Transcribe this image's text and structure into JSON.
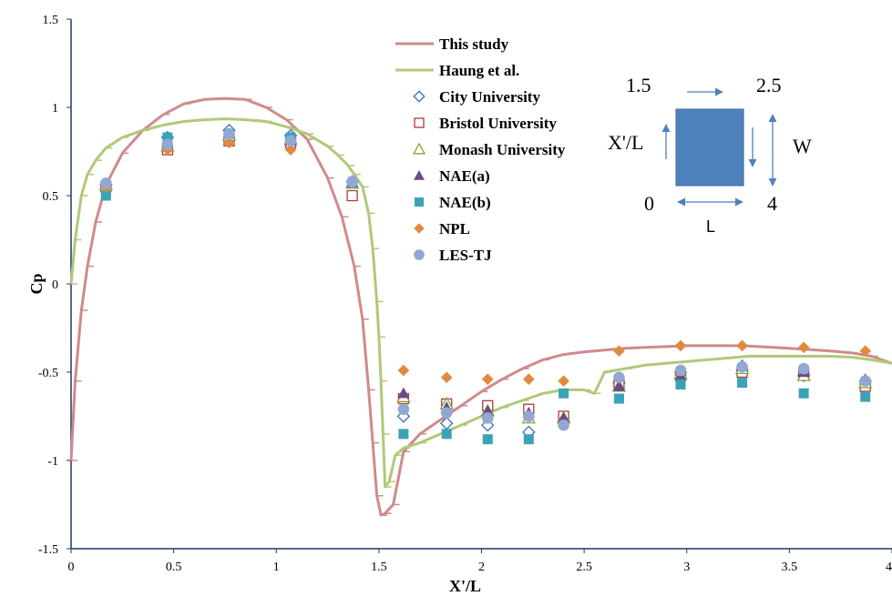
{
  "chart_data": {
    "type": "scatter",
    "xlabel": "X'/L",
    "ylabel": "Cp",
    "xlim": [
      0,
      4
    ],
    "ylim": [
      -1.5,
      1.5
    ],
    "x_ticks": [
      "0",
      "0.5",
      "1",
      "1.5",
      "2",
      "2.5",
      "3",
      "3.5",
      "4"
    ],
    "y_ticks": [
      "-1.5",
      "-1",
      "-0.5",
      "0",
      "0.5",
      "1",
      "1.5"
    ],
    "grid": false,
    "legend_position": "top-center",
    "lines": [
      {
        "name": "This study",
        "color": "#d08a8a",
        "x": [
          0,
          0.02,
          0.05,
          0.08,
          0.12,
          0.17,
          0.25,
          0.35,
          0.45,
          0.55,
          0.65,
          0.75,
          0.85,
          0.95,
          1.05,
          1.15,
          1.25,
          1.32,
          1.38,
          1.42,
          1.45,
          1.47,
          1.49,
          1.51,
          1.53,
          1.57,
          1.62,
          1.7,
          1.8,
          1.9,
          2.0,
          2.1,
          2.2,
          2.3,
          2.4,
          2.5,
          2.6,
          2.7,
          2.8,
          2.9,
          3.0,
          3.1,
          3.2,
          3.3,
          3.4,
          3.5,
          3.6,
          3.7,
          3.8,
          3.9,
          4.0
        ],
        "y": [
          -1.0,
          -0.55,
          -0.15,
          0.1,
          0.35,
          0.56,
          0.74,
          0.87,
          0.96,
          1.02,
          1.045,
          1.05,
          1.045,
          1.0,
          0.93,
          0.82,
          0.6,
          0.38,
          0.1,
          -0.2,
          -0.6,
          -0.9,
          -1.2,
          -1.31,
          -1.3,
          -1.25,
          -0.95,
          -0.85,
          -0.77,
          -0.69,
          -0.61,
          -0.54,
          -0.48,
          -0.43,
          -0.4,
          -0.385,
          -0.375,
          -0.365,
          -0.36,
          -0.355,
          -0.35,
          -0.35,
          -0.35,
          -0.352,
          -0.358,
          -0.365,
          -0.372,
          -0.38,
          -0.39,
          -0.41,
          -0.45
        ]
      },
      {
        "name": "Haung et al.",
        "color": "#afc97a",
        "x": [
          0,
          0.02,
          0.05,
          0.08,
          0.12,
          0.17,
          0.25,
          0.35,
          0.45,
          0.55,
          0.65,
          0.75,
          0.85,
          0.95,
          1.05,
          1.15,
          1.25,
          1.3,
          1.35,
          1.38,
          1.42,
          1.45,
          1.47,
          1.49,
          1.5,
          1.51,
          1.52,
          1.53,
          1.55,
          1.58,
          1.62,
          1.7,
          1.8,
          1.9,
          2.0,
          2.1,
          2.2,
          2.3,
          2.4,
          2.5,
          2.55,
          2.6,
          2.7,
          2.8,
          2.9,
          3.0,
          3.1,
          3.2,
          3.3,
          3.4,
          3.5,
          3.6,
          3.7,
          3.8,
          3.9,
          4.0
        ],
        "y": [
          0.0,
          0.25,
          0.5,
          0.62,
          0.7,
          0.77,
          0.83,
          0.87,
          0.9,
          0.92,
          0.93,
          0.935,
          0.93,
          0.92,
          0.89,
          0.85,
          0.78,
          0.73,
          0.67,
          0.62,
          0.55,
          0.4,
          0.2,
          -0.1,
          -0.3,
          -0.55,
          -0.85,
          -1.15,
          -1.12,
          -0.97,
          -0.93,
          -0.9,
          -0.85,
          -0.8,
          -0.75,
          -0.7,
          -0.66,
          -0.62,
          -0.6,
          -0.6,
          -0.62,
          -0.5,
          -0.48,
          -0.46,
          -0.45,
          -0.44,
          -0.43,
          -0.42,
          -0.41,
          -0.41,
          -0.41,
          -0.41,
          -0.41,
          -0.415,
          -0.43,
          -0.45
        ]
      }
    ],
    "series": [
      {
        "name": "City University",
        "marker": "diamond-open",
        "color": "#3a6fb5",
        "x": [
          0.17,
          0.47,
          0.77,
          1.07,
          1.37,
          1.62,
          1.83,
          2.03,
          2.23,
          2.4,
          2.67,
          2.97,
          3.27,
          3.57,
          3.87
        ],
        "y": [
          0.56,
          0.83,
          0.87,
          0.84,
          0.58,
          -0.75,
          -0.79,
          -0.8,
          -0.84,
          -0.78,
          -0.56,
          -0.5,
          -0.49,
          -0.52,
          -0.55
        ]
      },
      {
        "name": "Bristol University",
        "marker": "square-open",
        "color": "#b03a3a",
        "x": [
          0.17,
          0.47,
          0.77,
          1.07,
          1.37,
          1.62,
          1.83,
          2.03,
          2.23,
          2.4,
          2.67,
          2.97,
          3.27,
          3.57,
          3.87
        ],
        "y": [
          0.55,
          0.76,
          0.81,
          0.8,
          0.5,
          -0.65,
          -0.68,
          -0.69,
          -0.71,
          -0.75,
          -0.57,
          -0.52,
          -0.5,
          -0.51,
          -0.58
        ]
      },
      {
        "name": "Monash University",
        "marker": "triangle-open",
        "color": "#8aa336",
        "x": [
          0.17,
          0.47,
          0.77,
          1.07,
          1.37,
          1.62,
          1.83,
          2.03,
          2.23,
          2.4,
          2.67,
          2.97,
          3.27,
          3.57,
          3.87
        ],
        "y": [
          0.56,
          0.78,
          0.84,
          0.82,
          0.57,
          -0.64,
          -0.68,
          -0.72,
          -0.76,
          -0.76,
          -0.58,
          -0.51,
          -0.48,
          -0.52,
          -0.56
        ]
      },
      {
        "name": "NAE(a)",
        "marker": "triangle-filled",
        "color": "#6a4a8c",
        "x": [
          0.17,
          0.47,
          0.77,
          1.07,
          1.37,
          1.62,
          1.83,
          2.03,
          2.23,
          2.4,
          2.67,
          2.97,
          3.27,
          3.57,
          3.87
        ],
        "y": [
          0.57,
          0.8,
          0.85,
          0.81,
          0.58,
          -0.62,
          -0.7,
          -0.72,
          -0.73,
          -0.76,
          -0.58,
          -0.52,
          -0.46,
          -0.5,
          -0.54
        ]
      },
      {
        "name": "NAE(b)",
        "marker": "square-filled",
        "color": "#3aa3b5",
        "x": [
          0.17,
          0.47,
          0.77,
          1.07,
          1.37,
          1.62,
          1.83,
          2.03,
          2.23,
          2.4,
          2.67,
          2.97,
          3.27,
          3.57,
          3.87
        ],
        "y": [
          0.5,
          0.83,
          0.85,
          0.83,
          0.57,
          -0.85,
          -0.85,
          -0.88,
          -0.88,
          -0.62,
          -0.65,
          -0.57,
          -0.56,
          -0.62,
          -0.64
        ]
      },
      {
        "name": "NPL",
        "marker": "diamond-filled",
        "color": "#e08a3c",
        "x": [
          0.17,
          0.47,
          0.77,
          1.07,
          1.37,
          1.62,
          1.83,
          2.03,
          2.23,
          2.4,
          2.67,
          2.97,
          3.27,
          3.57,
          3.87
        ],
        "y": [
          0.55,
          0.76,
          0.8,
          0.76,
          0.57,
          -0.49,
          -0.53,
          -0.54,
          -0.54,
          -0.55,
          -0.38,
          -0.35,
          -0.35,
          -0.36,
          -0.38
        ]
      },
      {
        "name": "LES-TJ",
        "marker": "circle-filled",
        "color": "#92a8d2",
        "x": [
          0.17,
          0.47,
          0.77,
          1.07,
          1.37,
          1.62,
          1.83,
          2.03,
          2.23,
          2.4,
          2.67,
          2.97,
          3.27,
          3.57,
          3.87
        ],
        "y": [
          0.57,
          0.79,
          0.85,
          0.81,
          0.58,
          -0.71,
          -0.73,
          -0.76,
          -0.75,
          -0.8,
          -0.53,
          -0.49,
          -0.47,
          -0.48,
          -0.55
        ]
      }
    ],
    "inset": {
      "fill_color": "#4f81bd",
      "labels": {
        "top_left": "1.5",
        "top_right": "2.5",
        "left": "X'/L",
        "right": "W",
        "bottom_left": "0",
        "bottom_right": "4",
        "bottom": "L"
      }
    }
  }
}
